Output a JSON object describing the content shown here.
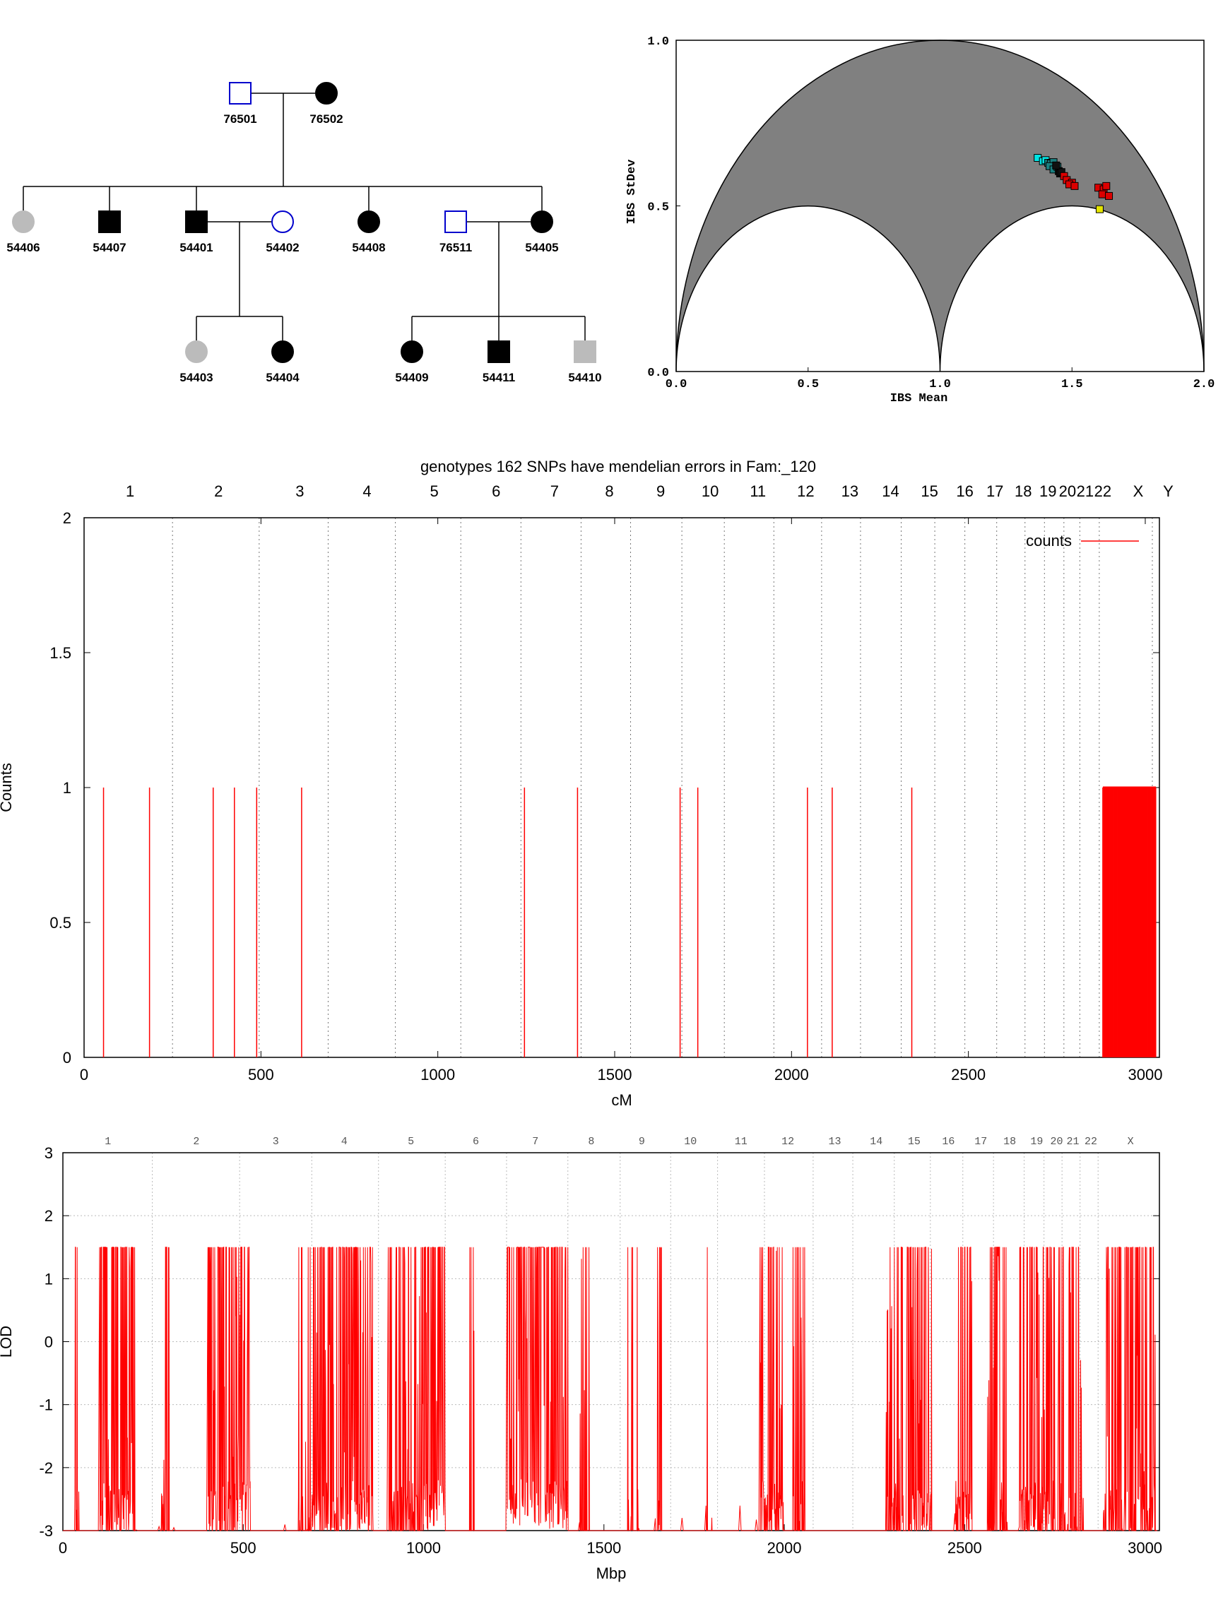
{
  "pedigree": {
    "individuals": [
      {
        "id": "76501",
        "sex": "male",
        "status": "unaffected"
      },
      {
        "id": "76502",
        "sex": "female",
        "status": "affected"
      },
      {
        "id": "54406",
        "sex": "female",
        "status": "unknown"
      },
      {
        "id": "54407",
        "sex": "male",
        "status": "affected"
      },
      {
        "id": "54401",
        "sex": "male",
        "status": "affected"
      },
      {
        "id": "54402",
        "sex": "female",
        "status": "unaffected"
      },
      {
        "id": "54408",
        "sex": "female",
        "status": "affected"
      },
      {
        "id": "76511",
        "sex": "male",
        "status": "unaffected"
      },
      {
        "id": "54405",
        "sex": "female",
        "status": "affected"
      },
      {
        "id": "54403",
        "sex": "female",
        "status": "unknown"
      },
      {
        "id": "54404",
        "sex": "female",
        "status": "affected"
      },
      {
        "id": "54409",
        "sex": "female",
        "status": "affected"
      },
      {
        "id": "54411",
        "sex": "male",
        "status": "affected"
      },
      {
        "id": "54410",
        "sex": "male",
        "status": "unknown"
      }
    ],
    "colors": {
      "affected": "#000000",
      "unaffected": "#0000cc",
      "unknown": "#bbbbbb"
    }
  },
  "chart_data": [
    {
      "type": "scatter",
      "name": "ibs",
      "title": "",
      "xlabel": "IBS Mean",
      "ylabel": "IBS StDev",
      "xlim": [
        0,
        2
      ],
      "ylim": [
        0,
        1
      ],
      "xticks": [
        "0.0",
        "0.5",
        "1.0",
        "1.5",
        "2.0"
      ],
      "yticks": [
        "0.0",
        "0.5",
        "1.0"
      ],
      "background": "#808080",
      "series": [
        {
          "color": "#00e5e5",
          "points": [
            [
              1.37,
              0.645
            ],
            [
              1.39,
              0.635
            ],
            [
              1.4,
              0.638
            ]
          ]
        },
        {
          "color": "#1a8080",
          "points": [
            [
              1.41,
              0.63
            ],
            [
              1.42,
              0.628
            ],
            [
              1.43,
              0.632
            ],
            [
              1.415,
              0.62
            ],
            [
              1.44,
              0.612
            ],
            [
              1.43,
              0.61
            ],
            [
              1.445,
              0.618
            ]
          ]
        },
        {
          "color": "#111111",
          "points": [
            [
              1.45,
              0.605
            ],
            [
              1.455,
              0.598
            ],
            [
              1.46,
              0.602
            ],
            [
              1.44,
              0.622
            ]
          ]
        },
        {
          "color": "#dd0000",
          "points": [
            [
              1.47,
              0.59
            ],
            [
              1.48,
              0.578
            ],
            [
              1.5,
              0.57
            ],
            [
              1.49,
              0.565
            ],
            [
              1.51,
              0.56
            ],
            [
              1.6,
              0.555
            ],
            [
              1.62,
              0.55
            ],
            [
              1.615,
              0.535
            ],
            [
              1.63,
              0.56
            ],
            [
              1.64,
              0.53
            ]
          ]
        },
        {
          "color": "#e5e500",
          "points": [
            [
              1.605,
              0.49
            ]
          ]
        }
      ]
    },
    {
      "type": "bar",
      "name": "mendelian",
      "title": "genotypes  162 SNPs have mendelian errors in Fam:_120",
      "xlabel": "cM",
      "ylabel": "Counts",
      "xlim": [
        0,
        3040
      ],
      "ylim": [
        0,
        2
      ],
      "xticks": [
        "0",
        "500",
        "1000",
        "1500",
        "2000",
        "2500",
        "3000"
      ],
      "yticks": [
        "0",
        "0.5",
        "1",
        "1.5",
        "2"
      ],
      "legend": "counts",
      "legend_position": "top-right",
      "color": "#ff0000",
      "chrom_labels": [
        "1",
        "2",
        "3",
        "4",
        "5",
        "6",
        "7",
        "8",
        "9",
        "10",
        "11",
        "12",
        "13",
        "14",
        "15",
        "16",
        "17",
        "18",
        "19",
        "20",
        "21",
        "22",
        "X",
        "Y"
      ],
      "chrom_label_x": [
        130,
        380,
        610,
        800,
        990,
        1165,
        1330,
        1485,
        1630,
        1770,
        1905,
        2040,
        2165,
        2280,
        2390,
        2490,
        2575,
        2655,
        2725,
        2780,
        2830,
        2880,
        2980,
        3065
      ],
      "chrom_bounds": [
        250,
        495,
        690,
        880,
        1065,
        1235,
        1405,
        1545,
        1690,
        1810,
        1950,
        2085,
        2195,
        2310,
        2405,
        2490,
        2580,
        2660,
        2715,
        2770,
        2815,
        2870,
        3020
      ],
      "values_x": [
        55,
        185,
        365,
        425,
        488,
        615,
        1245,
        1395,
        1685,
        1735,
        2045,
        2115,
        2340
      ],
      "dense_start": 2880,
      "dense_end": 3030,
      "dense_value": 1
    },
    {
      "type": "line",
      "name": "lod",
      "title": "",
      "xlabel": "Mbp",
      "ylabel": "LOD",
      "xlim": [
        0,
        3040
      ],
      "ylim": [
        -3,
        3
      ],
      "xticks": [
        "0",
        "500",
        "1000",
        "1500",
        "2000",
        "2500",
        "3000"
      ],
      "yticks": [
        "-3",
        "-2",
        "-1",
        "0",
        "1",
        "2",
        "3"
      ],
      "color": "#ff0000",
      "chrom_labels": [
        "1",
        "2",
        "3",
        "4",
        "5",
        "6",
        "7",
        "8",
        "9",
        "10",
        "11",
        "12",
        "13",
        "14",
        "15",
        "16",
        "17",
        "18",
        "19",
        "20",
        "21",
        "22",
        "X"
      ],
      "chrom_label_x": [
        125,
        370,
        590,
        780,
        965,
        1145,
        1310,
        1465,
        1605,
        1740,
        1880,
        2010,
        2140,
        2255,
        2360,
        2455,
        2545,
        2625,
        2700,
        2755,
        2800,
        2850,
        2960
      ],
      "chrom_bounds": [
        248,
        490,
        690,
        875,
        1060,
        1230,
        1400,
        1545,
        1685,
        1815,
        1945,
        2080,
        2190,
        2305,
        2405,
        2495,
        2580,
        2665,
        2720,
        2770,
        2820,
        2870
      ],
      "clusters": [
        [
          30,
          45,
          0.25
        ],
        [
          100,
          200,
          0.85
        ],
        [
          270,
          300,
          0.3
        ],
        [
          400,
          520,
          0.8
        ],
        [
          650,
          690,
          0.2
        ],
        [
          690,
          770,
          0.7
        ],
        [
          770,
          860,
          0.9
        ],
        [
          900,
          1000,
          0.6
        ],
        [
          1000,
          1060,
          1.0
        ],
        [
          1120,
          1140,
          0.3
        ],
        [
          1230,
          1400,
          1.0
        ],
        [
          1430,
          1460,
          0.3
        ],
        [
          1560,
          1600,
          0.2
        ],
        [
          1640,
          1660,
          0.3
        ],
        [
          1780,
          1800,
          0.2
        ],
        [
          1930,
          2000,
          0.7
        ],
        [
          2020,
          2060,
          0.4
        ],
        [
          2280,
          2330,
          0.6
        ],
        [
          2340,
          2410,
          0.8
        ],
        [
          2470,
          2520,
          0.7
        ],
        [
          2560,
          2620,
          0.5
        ],
        [
          2650,
          2750,
          0.7
        ],
        [
          2760,
          2830,
          0.5
        ],
        [
          2880,
          3030,
          0.6
        ]
      ]
    }
  ]
}
